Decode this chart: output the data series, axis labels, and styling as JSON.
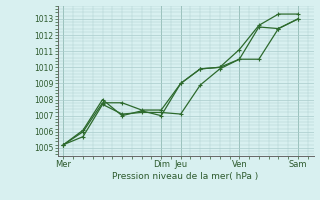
{
  "title": "",
  "xlabel": "Pression niveau de la mer( hPa )",
  "ylabel": "",
  "bg_color": "#d8f0f0",
  "grid_color": "#aacccc",
  "line_color": "#2d6a2d",
  "ylim_min": 1004.5,
  "ylim_max": 1013.8,
  "yticks": [
    1005,
    1006,
    1007,
    1008,
    1009,
    1010,
    1011,
    1012,
    1013
  ],
  "day_labels": [
    "Mer",
    "Dim",
    "Jeu",
    "Ven",
    "Sam"
  ],
  "day_positions": [
    0,
    5,
    6,
    9,
    12
  ],
  "xlim_min": -0.3,
  "xlim_max": 12.8,
  "series1_x": [
    0,
    1,
    2,
    3,
    4,
    5,
    6,
    7,
    8,
    9,
    10,
    11,
    12
  ],
  "series1_y": [
    1005.2,
    1005.7,
    1007.7,
    1007.1,
    1007.2,
    1007.2,
    1007.1,
    1008.9,
    1009.9,
    1010.5,
    1010.5,
    1012.4,
    1013.0
  ],
  "series2_x": [
    0,
    1,
    2,
    3,
    4,
    5,
    6,
    7,
    8,
    9,
    10,
    11,
    12
  ],
  "series2_y": [
    1005.2,
    1006.0,
    1007.8,
    1007.8,
    1007.35,
    1007.35,
    1009.0,
    1009.9,
    1010.0,
    1010.5,
    1012.5,
    1012.4,
    1013.0
  ],
  "series3_x": [
    0,
    1,
    2,
    3,
    4,
    5,
    6,
    7,
    8,
    9,
    10,
    11,
    12
  ],
  "series3_y": [
    1005.2,
    1006.1,
    1008.0,
    1007.0,
    1007.3,
    1007.0,
    1009.0,
    1009.9,
    1010.0,
    1011.1,
    1012.6,
    1013.3,
    1013.3
  ],
  "ytick_fontsize": 5.5,
  "xtick_fontsize": 6.0,
  "xlabel_fontsize": 6.5
}
